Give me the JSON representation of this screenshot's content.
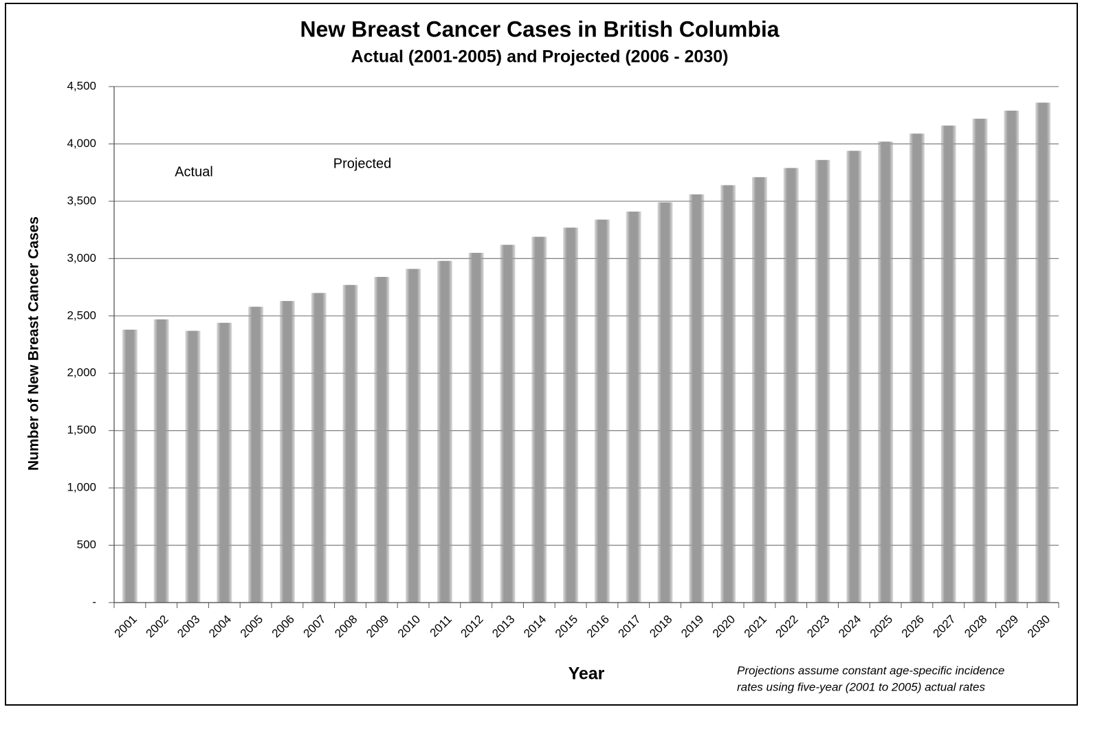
{
  "chart_data": {
    "type": "bar",
    "title": "New Breast Cancer Cases in British Columbia",
    "subtitle": "Actual (2001-2005) and Projected (2006 - 2030)",
    "x_label": "Year",
    "y_label": "Number of New Breast Cancer Cases",
    "annotations": [
      "Actual",
      "Projected"
    ],
    "footnote": [
      "Projections assume constant age-specific incidence",
      "rates using five-year (2001 to 2005) actual rates"
    ],
    "categories": [
      "2001",
      "2002",
      "2003",
      "2004",
      "2005",
      "2006",
      "2007",
      "2008",
      "2009",
      "2010",
      "2011",
      "2012",
      "2013",
      "2014",
      "2015",
      "2016",
      "2017",
      "2018",
      "2019",
      "2020",
      "2021",
      "2022",
      "2023",
      "2024",
      "2025",
      "2026",
      "2027",
      "2028",
      "2029",
      "2030"
    ],
    "values": [
      2380,
      2470,
      2370,
      2440,
      2580,
      2630,
      2700,
      2770,
      2840,
      2910,
      2980,
      3050,
      3120,
      3190,
      3270,
      3340,
      3410,
      3490,
      3560,
      3640,
      3710,
      3790,
      3860,
      3940,
      4020,
      4090,
      4160,
      4220,
      4290,
      4360
    ],
    "color": "#9a9a9a",
    "ylim": [
      0,
      4500
    ],
    "yticks": [
      {
        "value": 0,
        "label": "-"
      },
      500,
      {
        "value": 1000,
        "label": "1,000"
      },
      {
        "value": 1500,
        "label": "1,500"
      },
      {
        "value": 2000,
        "label": "2,000"
      },
      {
        "value": 2500,
        "label": "2,500"
      },
      {
        "value": 3000,
        "label": "3,000"
      },
      {
        "value": 3500,
        "label": "3,500"
      },
      {
        "value": 4000,
        "label": "4,000"
      },
      {
        "value": 4500,
        "label": "4,500"
      }
    ],
    "grid": true
  }
}
